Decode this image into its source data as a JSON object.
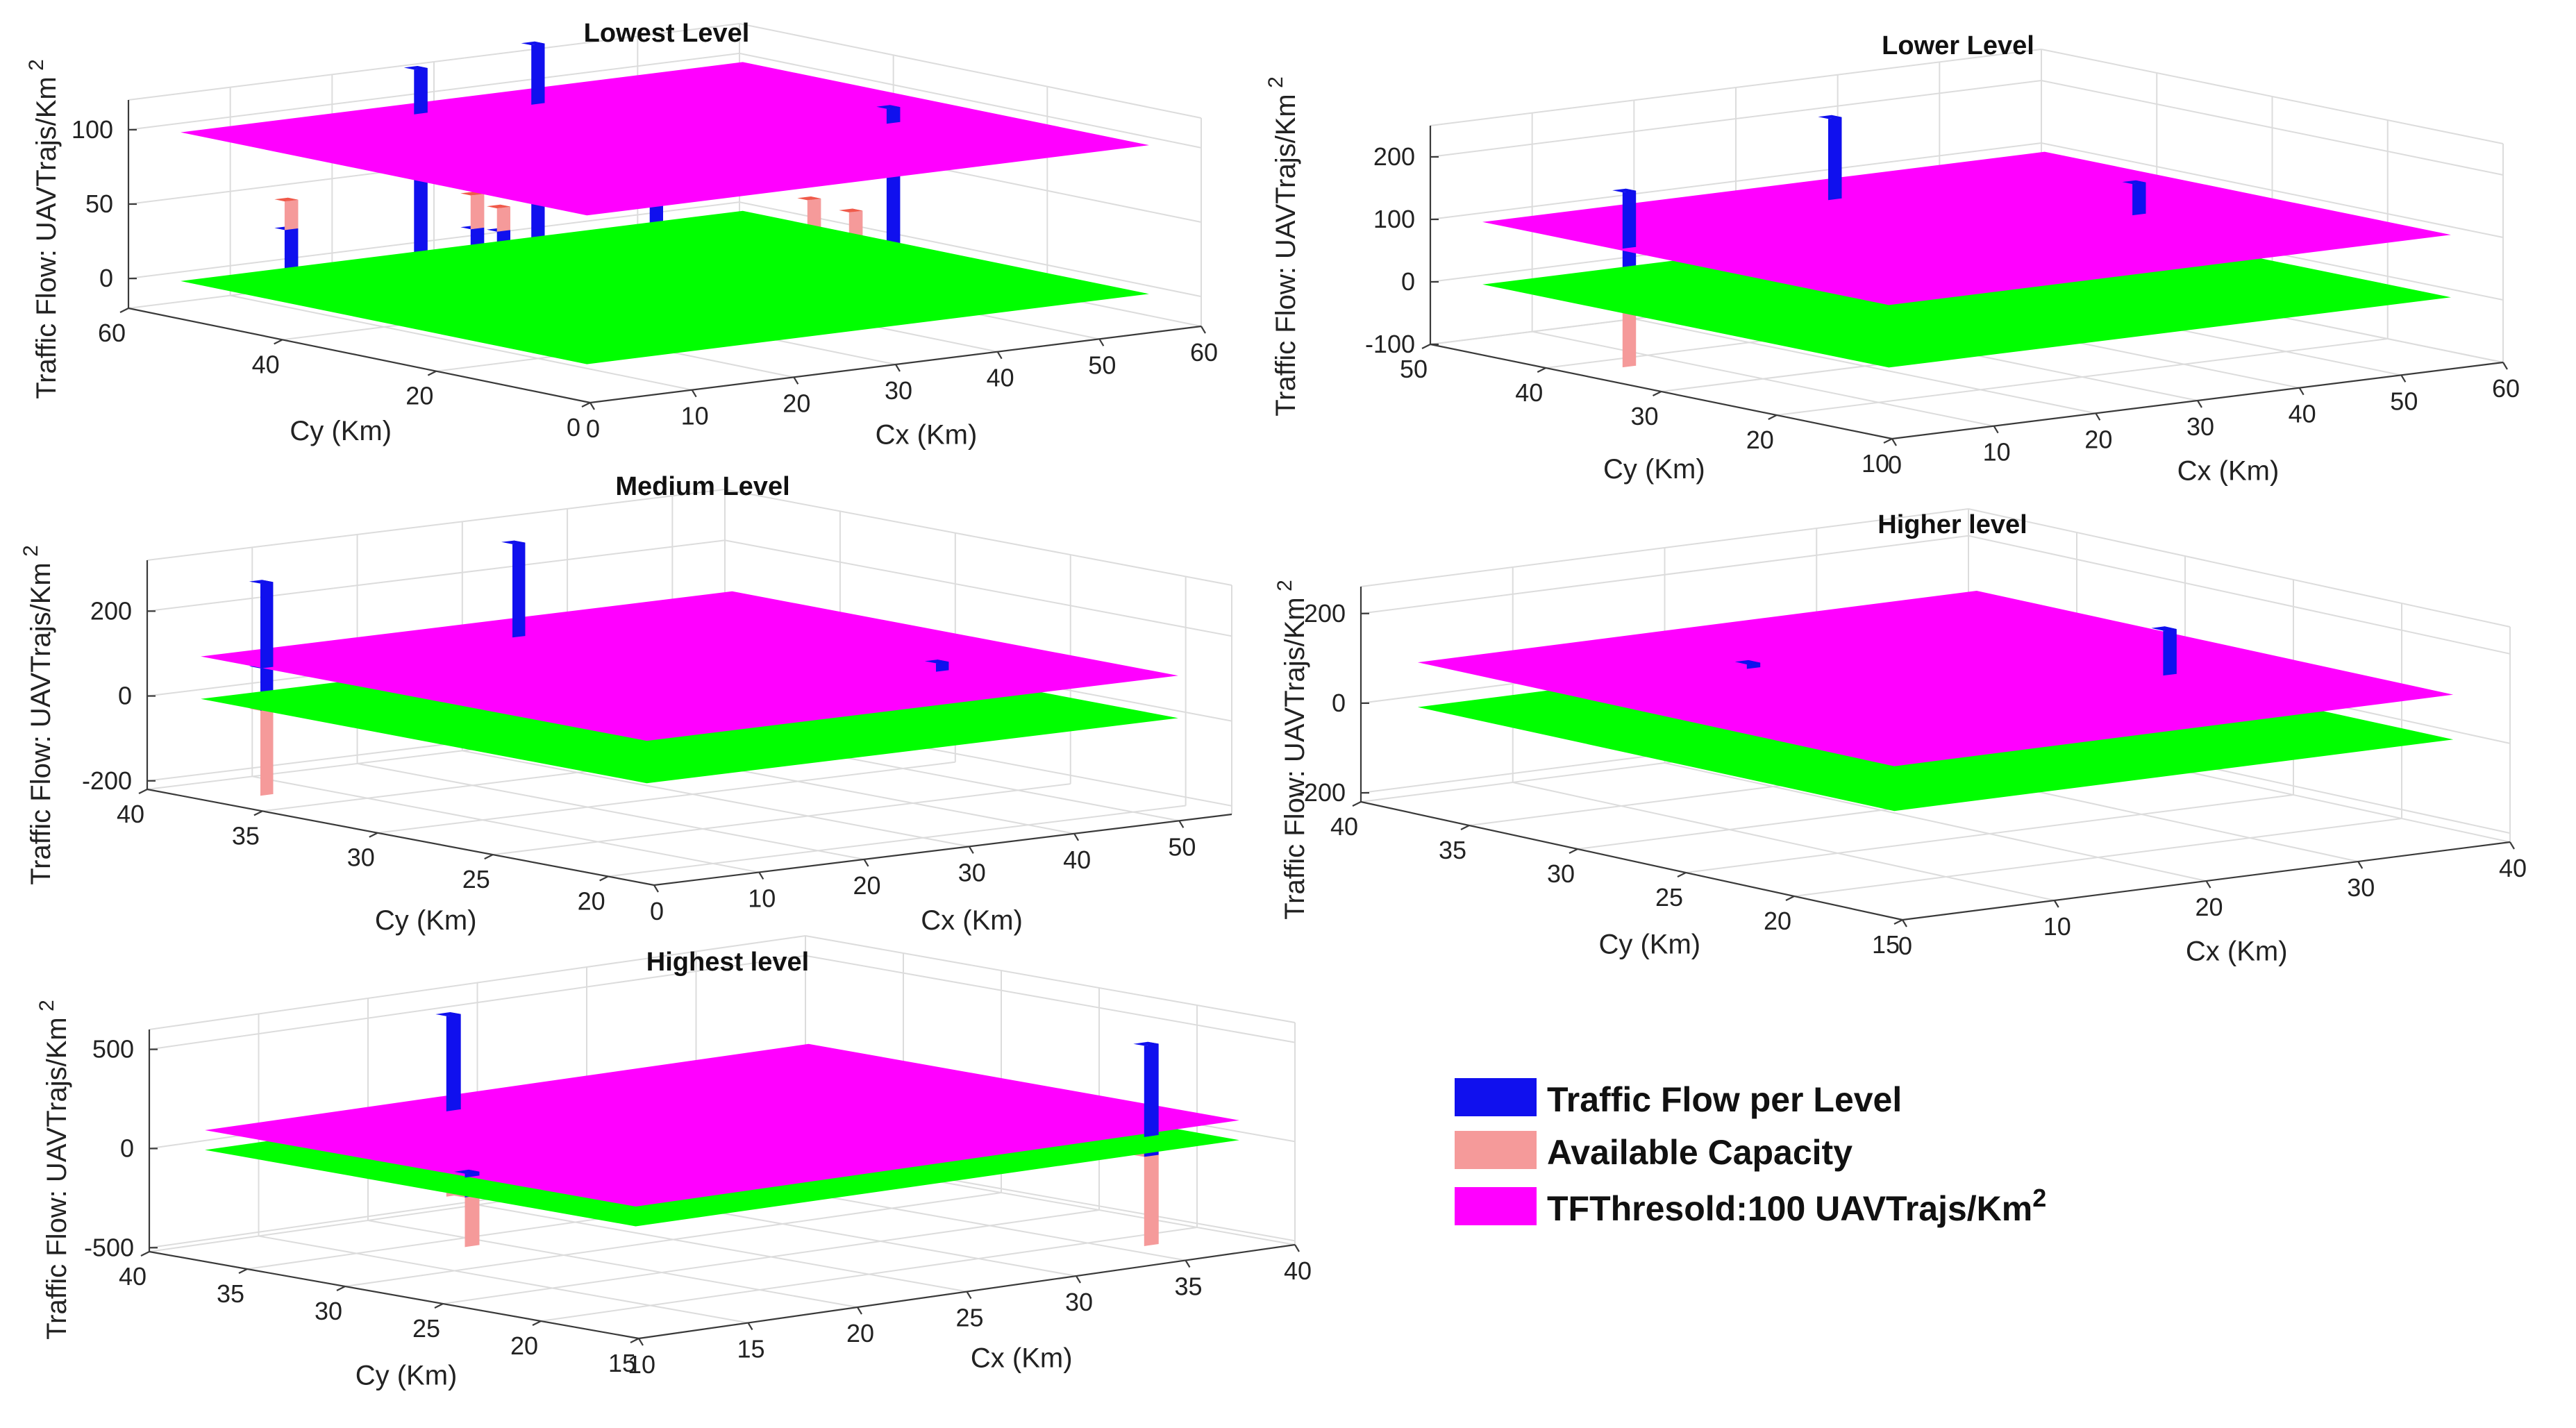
{
  "colors": {
    "traffic": "#1010ee",
    "traffic_dark": "#0606a8",
    "capacity": "#f59a9a",
    "capacity_dark": "#d96b6b",
    "threshold_plane": "#ff00ff",
    "ground_plane": "#00ff00",
    "capacity_top": "#f05a4a"
  },
  "legend": {
    "items": [
      {
        "label": "Traffic Flow per Level",
        "color": "#1010ee"
      },
      {
        "label": "Available Capacity",
        "color": "#f59a9a"
      },
      {
        "label": "TFThresold:100 UAVTrajs/Km",
        "sup": "2",
        "color": "#ff00ff"
      }
    ]
  },
  "chart_data": [
    {
      "type": "bar3d",
      "title": "Lowest Level",
      "zlabel": "Traffic Flow: UAVTrajs/Km",
      "zlabel_sup": "2",
      "xlabel": "Cx (Km)",
      "ylabel": "Cy (Km)",
      "xlim": [
        0,
        60
      ],
      "ylim": [
        0,
        60
      ],
      "zlim": [
        -20,
        120
      ],
      "xticks": [
        0,
        10,
        20,
        30,
        40,
        50,
        60
      ],
      "yticks": [
        0,
        20,
        40,
        60
      ],
      "zticks": [
        0,
        50,
        100
      ],
      "threshold": 100,
      "ground": 0,
      "bars": [
        {
          "x": 4,
          "y": 45,
          "flow": 45,
          "capacity": 55
        },
        {
          "x": 12,
          "y": 28,
          "flow": 55,
          "capacity": 45
        },
        {
          "x": 15,
          "y": 12,
          "flow": 45,
          "capacity": 55
        },
        {
          "x": 20,
          "y": 42,
          "flow": 35,
          "capacity": 65
        },
        {
          "x": 22,
          "y": 52,
          "flow": 130,
          "capacity": 0
        },
        {
          "x": 27,
          "y": 28,
          "flow": 90,
          "capacity": 10
        },
        {
          "x": 32,
          "y": 50,
          "flow": 140,
          "capacity": 0
        },
        {
          "x": 36,
          "y": 14,
          "flow": 42,
          "capacity": 58
        },
        {
          "x": 44,
          "y": 30,
          "flow": 18,
          "capacity": 82
        },
        {
          "x": 48,
          "y": 25,
          "flow": 110,
          "capacity": 0
        }
      ]
    },
    {
      "type": "bar3d",
      "title": "Lower Level",
      "zlabel": "Traffic Flow: UAVTrajs/Km",
      "zlabel_sup": "2",
      "xlabel": "Cx (Km)",
      "ylabel": "Cy (Km)",
      "xlim": [
        0,
        60
      ],
      "ylim": [
        10,
        50
      ],
      "zlim": [
        -100,
        250
      ],
      "xticks": [
        0,
        10,
        20,
        30,
        40,
        50,
        60
      ],
      "yticks": [
        10,
        20,
        30,
        40,
        50
      ],
      "zticks": [
        -100,
        0,
        100,
        200
      ],
      "threshold": 100,
      "ground": 0,
      "bars": [
        {
          "x": 3,
          "y": 36,
          "flow": 190,
          "capacity": -90
        },
        {
          "x": 12,
          "y": 20,
          "flow": 55,
          "capacity": 45
        },
        {
          "x": 30,
          "y": 42,
          "flow": 230,
          "capacity": 0
        },
        {
          "x": 44,
          "y": 28,
          "flow": 150,
          "capacity": 0
        }
      ]
    },
    {
      "type": "bar3d",
      "title": "Medium Level",
      "zlabel": "Traffic Flow: UAVTrajs/Km",
      "zlabel_sup": "2",
      "xlabel": "Cx (Km)",
      "ylabel": "Cy (Km)",
      "xlim": [
        0,
        55
      ],
      "ylim": [
        18,
        40
      ],
      "zlim": [
        -220,
        320
      ],
      "xticks": [
        0,
        10,
        20,
        30,
        40,
        50
      ],
      "yticks": [
        20,
        25,
        30,
        35,
        40
      ],
      "zticks": [
        -200,
        0,
        200
      ],
      "threshold": 100,
      "ground": 0,
      "bars": [
        {
          "x": 2,
          "y": 36,
          "flow": 300,
          "capacity": -200
        },
        {
          "x": 26,
          "y": 36,
          "flow": 320,
          "capacity": 0
        },
        {
          "x": 40,
          "y": 24,
          "flow": 120,
          "capacity": 0
        }
      ]
    },
    {
      "type": "bar3d",
      "title": "Higher level",
      "zlabel": "Traffic Flow: UAVTrajs/Km",
      "zlabel_sup": "2",
      "xlabel": "Cx (Km)",
      "ylabel": "Cy (Km)",
      "xlim": [
        0,
        40
      ],
      "ylim": [
        15,
        40
      ],
      "zlim": [
        -220,
        260
      ],
      "xticks": [
        0,
        10,
        20,
        30,
        40
      ],
      "yticks": [
        15,
        20,
        25,
        30,
        35,
        40
      ],
      "zticks": [
        -200,
        0,
        200
      ],
      "threshold": 100,
      "ground": 0,
      "bars": [
        {
          "x": 14,
          "y": 32,
          "flow": 110,
          "capacity": 0
        },
        {
          "x": 30,
          "y": 24,
          "flow": 200,
          "capacity": -100
        }
      ]
    },
    {
      "type": "bar3d",
      "title": "Highest level",
      "zlabel": "Traffic Flow: UAVTrajs/Km",
      "zlabel_sup": "2",
      "xlabel": "Cx (Km)",
      "ylabel": "Cy (Km)",
      "xlim": [
        10,
        40
      ],
      "ylim": [
        15,
        40
      ],
      "zlim": [
        -520,
        600
      ],
      "xticks": [
        10,
        15,
        20,
        25,
        30,
        35,
        40
      ],
      "yticks": [
        15,
        20,
        25,
        30,
        35,
        40
      ],
      "zticks": [
        -500,
        0,
        500
      ],
      "threshold": 100,
      "ground": 0,
      "bars": [
        {
          "x": 11,
          "y": 25,
          "flow": 120,
          "capacity": -250
        },
        {
          "x": 20,
          "y": 36,
          "flow": 580,
          "capacity": -330
        },
        {
          "x": 34,
          "y": 16,
          "flow": 560,
          "capacity": -450
        }
      ]
    }
  ]
}
